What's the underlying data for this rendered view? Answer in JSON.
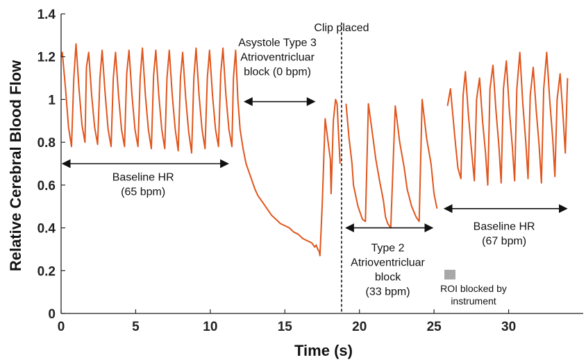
{
  "chart_data": {
    "type": "line",
    "title": "",
    "xlabel": "Time (s)",
    "ylabel": "Relative Cerebral Blood Flow",
    "xlim": [
      0,
      35
    ],
    "ylim": [
      0,
      1.4
    ],
    "xticks": [
      "0",
      "5",
      "10",
      "15",
      "20",
      "25",
      "30"
    ],
    "yticks": [
      "0",
      "0.2",
      "0.4",
      "0.6",
      "0.8",
      "1",
      "1.2",
      "1.4"
    ],
    "grid": false,
    "line_color": "#E0551C",
    "series": [
      {
        "segments": [
          {
            "x": [
              0.0,
              0.08,
              0.3,
              0.5,
              0.7,
              0.85,
              1.0,
              1.2,
              1.4,
              1.6,
              1.7,
              1.85,
              2.05,
              2.25,
              2.45,
              2.6,
              2.75,
              2.95,
              3.15,
              3.35,
              3.5,
              3.65,
              3.85,
              4.05,
              4.25,
              4.4,
              4.55,
              4.75,
              4.95,
              5.15,
              5.3,
              5.45,
              5.65,
              5.85,
              6.05,
              6.2,
              6.35,
              6.55,
              6.75,
              6.95,
              7.1,
              7.25,
              7.45,
              7.65,
              7.85,
              8.0,
              8.15,
              8.35,
              8.55,
              8.75,
              8.9,
              9.05,
              9.25,
              9.45,
              9.65,
              9.8,
              9.95,
              10.15,
              10.35,
              10.55,
              10.7,
              10.85,
              11.05,
              11.25,
              11.45,
              11.55,
              11.7,
              11.85,
              12.0,
              12.2,
              12.4,
              12.6,
              12.8,
              13.0,
              13.2,
              13.5,
              13.8,
              14.1,
              14.4,
              14.7,
              15.0,
              15.3,
              15.6,
              15.9,
              16.2,
              16.5,
              16.8,
              17.0,
              17.1,
              17.2,
              17.3,
              17.35,
              17.5,
              17.7,
              17.9,
              18.05,
              18.1,
              18.25,
              18.4,
              18.5,
              18.6,
              18.7
            ],
            "y": [
              1.2,
              1.22,
              1.05,
              0.87,
              0.78,
              1.1,
              1.26,
              1.05,
              0.88,
              0.8,
              1.15,
              1.22,
              1.02,
              0.87,
              0.79,
              1.1,
              1.23,
              1.03,
              0.86,
              0.78,
              1.1,
              1.22,
              1.02,
              0.86,
              0.78,
              1.12,
              1.23,
              1.02,
              0.86,
              0.78,
              1.1,
              1.24,
              1.02,
              0.86,
              0.77,
              1.11,
              1.23,
              1.02,
              0.86,
              0.77,
              1.1,
              1.23,
              1.02,
              0.86,
              0.76,
              1.1,
              1.22,
              1.01,
              0.85,
              0.75,
              1.1,
              1.24,
              1.02,
              0.86,
              0.77,
              1.1,
              1.23,
              1.02,
              0.86,
              0.78,
              1.12,
              1.24,
              1.02,
              0.86,
              0.78,
              1.1,
              1.23,
              1.0,
              0.86,
              0.77,
              0.7,
              0.66,
              0.62,
              0.58,
              0.55,
              0.52,
              0.49,
              0.46,
              0.44,
              0.42,
              0.41,
              0.4,
              0.38,
              0.37,
              0.35,
              0.34,
              0.33,
              0.31,
              0.32,
              0.3,
              0.29,
              0.27,
              0.5,
              0.91,
              0.8,
              0.72,
              0.56,
              0.9,
              1.0,
              0.98,
              0.84,
              0.7
            ]
          },
          {
            "x": [
              19.1,
              19.3,
              19.5,
              19.6,
              19.9,
              20.2,
              20.4,
              20.6,
              20.85,
              21.1,
              21.35,
              21.6,
              21.75,
              21.9,
              22.1,
              22.4,
              22.7,
              23.0,
              23.2,
              23.5,
              23.8,
              24.0,
              24.2,
              24.5,
              24.8,
              25.0,
              25.2
            ],
            "y": [
              0.98,
              0.82,
              0.7,
              0.6,
              0.5,
              0.44,
              0.43,
              0.98,
              0.85,
              0.72,
              0.62,
              0.53,
              0.45,
              0.42,
              0.4,
              0.97,
              0.8,
              0.68,
              0.58,
              0.5,
              0.45,
              0.43,
              1.0,
              0.82,
              0.7,
              0.56,
              0.49
            ]
          },
          {
            "x": [
              25.9,
              26.1,
              26.4,
              26.6,
              26.8,
              26.95,
              27.1,
              27.3,
              27.5,
              27.7,
              27.85,
              28.05,
              28.25,
              28.45,
              28.6,
              28.75,
              28.95,
              29.15,
              29.35,
              29.5,
              29.65,
              29.85,
              30.05,
              30.25,
              30.4,
              30.55,
              30.75,
              30.95,
              31.15,
              31.3,
              31.45,
              31.65,
              31.85,
              32.05,
              32.2,
              32.35,
              32.55,
              32.75,
              32.95,
              33.1,
              33.25,
              33.45,
              33.65,
              33.8,
              33.95
            ],
            "y": [
              0.97,
              1.05,
              0.82,
              0.68,
              0.63,
              1.02,
              1.13,
              0.93,
              0.77,
              0.62,
              1.0,
              1.1,
              0.9,
              0.75,
              0.6,
              1.05,
              1.16,
              0.95,
              0.78,
              0.61,
              1.05,
              1.18,
              0.95,
              0.78,
              0.62,
              1.05,
              1.22,
              0.98,
              0.8,
              0.63,
              1.02,
              1.15,
              0.95,
              0.78,
              0.61,
              1.05,
              1.22,
              1.0,
              0.82,
              0.64,
              1.0,
              1.12,
              0.92,
              0.75,
              1.1
            ]
          }
        ]
      }
    ],
    "vertical_line": {
      "x": 18.8,
      "label": "Clip placed",
      "style": "dashed"
    },
    "annotations": [
      {
        "text_lines": [
          "Baseline HR",
          "(65 bpm)"
        ],
        "arrow_x": [
          0.1,
          11.2
        ],
        "arrow_y": 0.7,
        "text_x": 5.5,
        "text_y": 0.62
      },
      {
        "text_lines": [
          "Asystole Type 3",
          "Atrioventricluar",
          "block (0 bpm)"
        ],
        "arrow_x": [
          12.3,
          17.0
        ],
        "arrow_y": 0.99,
        "text_x": 14.5,
        "text_y": 1.25
      },
      {
        "text_lines": [
          "Type 2",
          "Atrioventricluar",
          "block",
          "(33 bpm)"
        ],
        "arrow_x": [
          19.1,
          24.9
        ],
        "arrow_y": 0.4,
        "text_x": 21.9,
        "text_y": 0.29
      },
      {
        "text_lines": [
          "Baseline HR",
          "(67 bpm)"
        ],
        "arrow_x": [
          25.7,
          33.9
        ],
        "arrow_y": 0.49,
        "text_x": 29.7,
        "text_y": 0.39
      }
    ],
    "legend": {
      "placement": "bottom-right",
      "items": [
        {
          "label_lines": [
            "ROI blocked by",
            "instrument"
          ],
          "color": "#a8a8a8"
        }
      ]
    }
  }
}
